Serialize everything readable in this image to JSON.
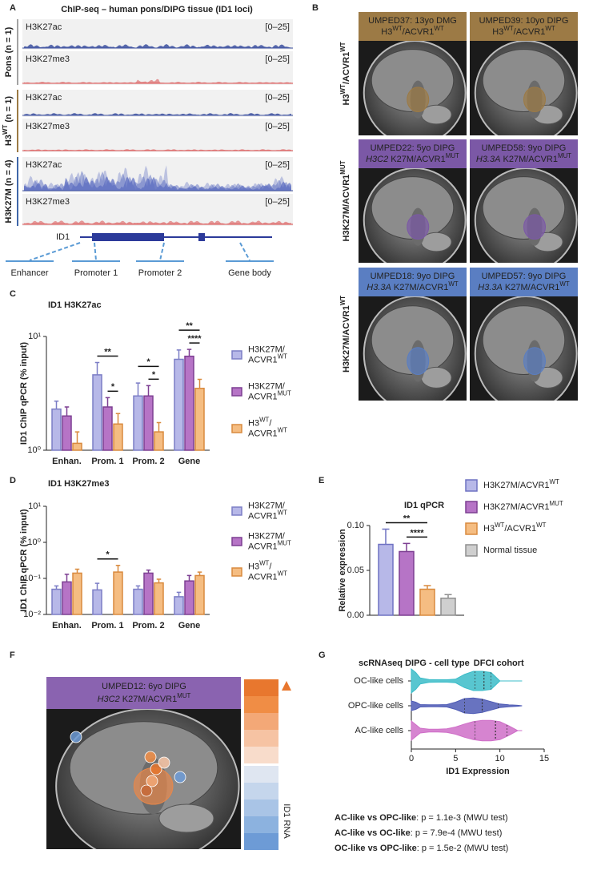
{
  "panel_labels": [
    "A",
    "B",
    "C",
    "D",
    "E",
    "F",
    "G"
  ],
  "panel_a": {
    "title": "ChIP-seq – human pons/DIPG tissue (ID1 loci)",
    "tracks": [
      {
        "name": "H3K27ac",
        "range": "[0–25]",
        "color": "#3b4f9f"
      },
      {
        "name": "H3K27me3",
        "range": "[0–25]",
        "color": "#d94a4a"
      },
      {
        "name": "H3K27ac",
        "range": "[0–25]",
        "color": "#3b4f9f"
      },
      {
        "name": "H3K27me3",
        "range": "[0–25]",
        "color": "#d94a4a"
      },
      {
        "name": "H3K27ac",
        "range": "[0–25]",
        "color": "#3b4f9f"
      },
      {
        "name": "H3K27me3",
        "range": "[0–25]",
        "color": "#d94a4a"
      }
    ],
    "groups": [
      {
        "label": "Pons (n = 1)",
        "color": "#a3a3a3"
      },
      {
        "label": [
          "H3",
          {
            "text": "WT",
            "sup": true
          },
          " (n = 1)"
        ],
        "color": "#9c7a45"
      },
      {
        "label": "H3K27M (n = 4)",
        "color": "#3f67a9"
      }
    ],
    "gene": "ID1",
    "regions": [
      "Enhancer",
      "Promoter 1",
      "Promoter 2",
      "Gene body"
    ]
  },
  "panel_b": {
    "rows": [
      {
        "label": [
          "H3",
          {
            "text": "WT",
            "sup": true
          },
          "/ACVR1",
          {
            "text": "WT",
            "sup": true
          }
        ],
        "color": "#9c7a45",
        "images": [
          {
            "lines": [
              "UMPED37: 13yo DMG",
              [
                "H3",
                {
                  "text": "WT",
                  "sup": true
                },
                "/ACVR1",
                {
                  "text": "WT",
                  "sup": true
                }
              ]
            ]
          },
          {
            "lines": [
              "UMPED39: 10yo DIPG",
              [
                "H3",
                {
                  "text": "WT",
                  "sup": true
                },
                "/ACVR1",
                {
                  "text": "WT",
                  "sup": true
                }
              ]
            ]
          }
        ]
      },
      {
        "label": [
          "H3K27M/ACVR1",
          {
            "text": "MUT",
            "sup": true
          }
        ],
        "color": "#7b58a6",
        "images": [
          {
            "lines": [
              "UMPED22: 5yo DIPG",
              [
                {
                  "text": "H3C2",
                  "italic": true
                },
                " K27M/ACVR1",
                {
                  "text": "MUT",
                  "sup": true
                }
              ]
            ]
          },
          {
            "lines": [
              "UMPED58: 9yo DIPG",
              [
                {
                  "text": "H3.3A",
                  "italic": true
                },
                " K27M/ACVR1",
                {
                  "text": "MUT",
                  "sup": true
                }
              ]
            ]
          }
        ]
      },
      {
        "label": [
          "H3K27M/ACVR1",
          {
            "text": "WT",
            "sup": true
          }
        ],
        "color": "#5a7ec2",
        "images": [
          {
            "lines": [
              "UMPED18: 9yo DIPG",
              [
                {
                  "text": "H3.3A",
                  "italic": true
                },
                " K27M/ACVR1",
                {
                  "text": "WT",
                  "sup": true
                }
              ]
            ]
          },
          {
            "lines": [
              "UMPED57: 9yo DIPG",
              [
                {
                  "text": "H3.3A",
                  "italic": true
                },
                " K27M/ACVR1",
                {
                  "text": "WT",
                  "sup": true
                }
              ]
            ]
          }
        ]
      }
    ]
  },
  "panel_f": {
    "lines": [
      "UMPED12: 6yo DIPG",
      [
        {
          "text": "H3C2",
          "italic": true
        },
        " K27M/ACVR1",
        {
          "text": "MUT",
          "sup": true
        }
      ]
    ],
    "color": "#8a63b0",
    "scale_label": "ID1 RNA"
  },
  "chart_data": [
    {
      "type": "bar",
      "title": "ID1 H3K27ac",
      "ylabel": "ID1 ChIP qPCR (% input)",
      "log_scale": true,
      "categories": [
        "Enhan.",
        "Prom. 1",
        "Prom. 2",
        "Gene"
      ],
      "ylim": [
        1,
        10
      ],
      "yticks": [
        {
          "value": 1,
          "label": "10⁰"
        },
        {
          "value": 10,
          "label": "10¹"
        }
      ],
      "series": [
        {
          "name": [
            [
              "H3K27M/"
            ],
            [
              "ACVR1",
              {
                "text": "WT",
                "sup": true
              }
            ]
          ],
          "color": "#b7b8e8",
          "edge_color": "#7c7ec6",
          "values": [
            2.3,
            4.6,
            3.0,
            6.3
          ],
          "errors": [
            0.4,
            1.3,
            0.9,
            1.3
          ]
        },
        {
          "name": [
            [
              "H3K27M/"
            ],
            [
              "ACVR1",
              {
                "text": "MUT",
                "sup": true
              }
            ]
          ],
          "color": "#b674c6",
          "edge_color": "#7d3f92",
          "values": [
            2.0,
            2.4,
            3.0,
            6.7
          ],
          "errors": [
            0.4,
            0.5,
            0.7,
            1.0
          ]
        },
        {
          "name": [
            [
              "H3",
              {
                "text": "WT",
                "sup": true
              },
              "/"
            ],
            [
              "ACVR1",
              {
                "text": "WT",
                "sup": true
              }
            ]
          ],
          "color": "#f5bd82",
          "edge_color": "#d98a3e",
          "values": [
            1.15,
            1.7,
            1.45,
            3.5
          ],
          "errors": [
            0.3,
            0.4,
            0.3,
            0.7
          ]
        }
      ],
      "significance": [
        {
          "text": "*",
          "category": 1,
          "series": [
            1,
            2
          ]
        },
        {
          "text": "**",
          "category": 1,
          "series": [
            0,
            2
          ]
        },
        {
          "text": "*",
          "category": 2,
          "series": [
            1,
            2
          ]
        },
        {
          "text": "*",
          "category": 2,
          "series": [
            0,
            2
          ]
        },
        {
          "text": "****",
          "category": 3,
          "series": [
            1,
            2
          ]
        },
        {
          "text": "**",
          "category": 3,
          "series": [
            0,
            2
          ]
        }
      ]
    },
    {
      "type": "bar",
      "title": "ID1 H3K27me3",
      "ylabel": "ID1 ChIP qPCR (% input)",
      "log_scale": true,
      "categories": [
        "Enhan.",
        "Prom. 1",
        "Prom. 2",
        "Gene"
      ],
      "ylim": [
        0.01,
        10
      ],
      "yticks": [
        {
          "value": 0.01,
          "label": "10⁻²"
        },
        {
          "value": 0.1,
          "label": "10⁻¹"
        },
        {
          "value": 1,
          "label": "10⁰"
        },
        {
          "value": 10,
          "label": "10¹"
        }
      ],
      "series": [
        {
          "name": [
            [
              "H3K27M/"
            ],
            [
              "ACVR1",
              {
                "text": "WT",
                "sup": true
              }
            ]
          ],
          "color": "#b7b8e8",
          "edge_color": "#7c7ec6",
          "values": [
            0.05,
            0.048,
            0.05,
            0.031
          ],
          "errors": [
            0.012,
            0.025,
            0.012,
            0.01
          ]
        },
        {
          "name": [
            [
              "H3K27M/"
            ],
            [
              "ACVR1",
              {
                "text": "MUT",
                "sup": true
              }
            ]
          ],
          "color": "#b674c6",
          "edge_color": "#7d3f92",
          "values": [
            0.08,
            null,
            0.14,
            0.085
          ],
          "errors": [
            0.05,
            null,
            0.03,
            0.035
          ]
        },
        {
          "name": [
            [
              "H3",
              {
                "text": "WT",
                "sup": true
              },
              "/"
            ],
            [
              "ACVR1",
              {
                "text": "WT",
                "sup": true
              }
            ]
          ],
          "color": "#f5bd82",
          "edge_color": "#d98a3e",
          "values": [
            0.14,
            0.15,
            0.075,
            0.12
          ],
          "errors": [
            0.04,
            0.08,
            0.02,
            0.03
          ]
        }
      ],
      "significance": [
        {
          "text": "*",
          "category": 1,
          "series": [
            0,
            2
          ]
        }
      ]
    },
    {
      "type": "bar",
      "title": "ID1 qPCR",
      "ylabel": "Relative expression",
      "log_scale": false,
      "ylim": [
        0,
        0.1
      ],
      "yticks": [
        {
          "value": 0,
          "label": "0.00"
        },
        {
          "value": 0.05,
          "label": "0.05"
        },
        {
          "value": 0.1,
          "label": "0.10"
        }
      ],
      "series": [
        {
          "name": [
            [
              "H3K27M/ACVR1",
              {
                "text": "WT",
                "sup": true
              }
            ]
          ],
          "color": "#b7b8e8",
          "edge_color": "#6f72c2",
          "values": [
            0.079
          ],
          "errors": [
            0.017
          ]
        },
        {
          "name": [
            [
              "H3K27M/ACVR1",
              {
                "text": "MUT",
                "sup": true
              }
            ]
          ],
          "color": "#b674c6",
          "edge_color": "#7d3f92",
          "values": [
            0.071
          ],
          "errors": [
            0.009
          ]
        },
        {
          "name": [
            [
              "H3",
              {
                "text": "WT",
                "sup": true
              },
              "/ACVR1",
              {
                "text": "WT",
                "sup": true
              }
            ]
          ],
          "color": "#f5bd82",
          "edge_color": "#d98a3e",
          "values": [
            0.029
          ],
          "errors": [
            0.004
          ]
        },
        {
          "name": [
            [
              "Normal tissue"
            ]
          ],
          "color": "#cfcfcf",
          "edge_color": "#8f8f8f",
          "values": [
            0.019
          ],
          "errors": [
            0.004
          ]
        }
      ],
      "significance": [
        {
          "text": "****",
          "series": [
            1,
            2
          ]
        },
        {
          "text": "**",
          "series": [
            0,
            2
          ]
        }
      ]
    },
    {
      "type": "violin",
      "title": "scRNAseq DIPG - cell type",
      "subtitle": "DFCI cohort",
      "xlabel": "ID1 Expression",
      "categories": [
        "OC-like cells",
        "OPC-like cells",
        "AC-like cells"
      ],
      "xlim": [
        0,
        15
      ],
      "xticks": [
        0,
        5,
        10,
        15
      ],
      "density_x": [
        0,
        0.5,
        1,
        2,
        3,
        4,
        5,
        6,
        7,
        8,
        9,
        10,
        11,
        12,
        12.5
      ],
      "violins": [
        {
          "color": "#3bbcc8",
          "density": [
            1.0,
            0.7,
            0.25,
            0.12,
            0.1,
            0.1,
            0.15,
            0.55,
            0.8,
            0.8,
            0.7,
            0,
            0,
            0,
            0
          ],
          "quartiles": [
            7.2,
            8.2,
            9.0
          ]
        },
        {
          "color": "#4e5bb5",
          "density": [
            0.4,
            0.3,
            0.1,
            0.08,
            0.08,
            0.1,
            0.3,
            0.6,
            0.65,
            0.55,
            0.35,
            0.15,
            0.08,
            0.04,
            0
          ],
          "quartiles": [
            6.0,
            8.0,
            9.8
          ]
        },
        {
          "color": "#cf6ec8",
          "density": [
            0.8,
            0.5,
            0.2,
            0.12,
            0.12,
            0.15,
            0.3,
            0.55,
            0.75,
            0.85,
            0.85,
            0.75,
            0.4,
            0,
            0
          ],
          "quartiles": [
            7.2,
            9.5,
            10.8
          ]
        }
      ]
    }
  ],
  "stats": [
    [
      {
        "text": "AC-like vs OPC-like",
        "bold": true
      },
      ": p = 1.1e-3 (MWU test)"
    ],
    [
      {
        "text": "AC-like vs OC-like",
        "bold": true
      },
      ": p = 7.9e-4 (MWU test)"
    ],
    [
      {
        "text": "OC-like vs OPC-like",
        "bold": true
      },
      ": p = 1.5e-2 (MWU test)"
    ]
  ]
}
